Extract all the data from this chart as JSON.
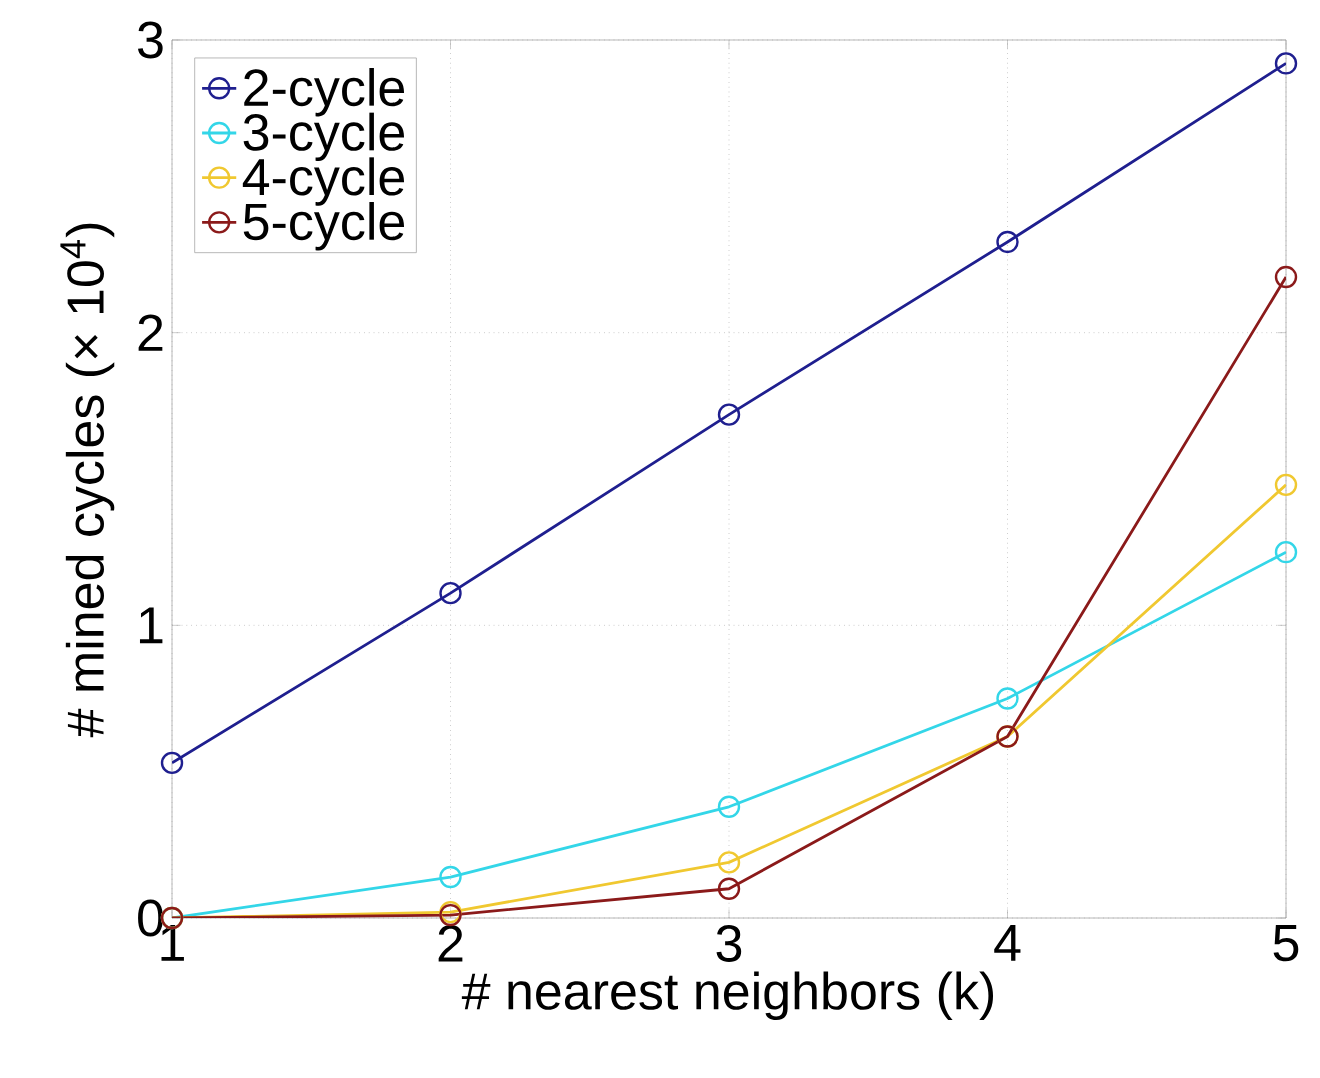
{
  "chart_data": {
    "type": "line",
    "xlabel": "# nearest neighbors (k)",
    "ylabel": "# mined cycles (× 10$^{4}$)",
    "x": [
      1,
      2,
      3,
      4,
      5
    ],
    "xlim": [
      1,
      5
    ],
    "xticks": [
      1,
      2,
      3,
      4,
      5
    ],
    "ylim": [
      0,
      3
    ],
    "yticks": [
      0,
      1,
      2,
      3
    ],
    "grid": true,
    "legend": "top left",
    "marker": "circle",
    "line_style": "solid",
    "series": [
      {
        "name": "2-cycle",
        "color": "#1f1f8f",
        "values": [
          0.53,
          1.11,
          1.72,
          2.31,
          2.92
        ]
      },
      {
        "name": "3-cycle",
        "color": "#33d6e8",
        "values": [
          0,
          0.14,
          0.38,
          0.75,
          1.25
        ]
      },
      {
        "name": "4-cycle",
        "color": "#f0c830",
        "values": [
          0,
          0.02,
          0.19,
          0.62,
          1.48
        ]
      },
      {
        "name": "5-cycle",
        "color": "#8b1a1a",
        "values": [
          0,
          0.01,
          0.1,
          0.62,
          2.19
        ]
      }
    ]
  }
}
